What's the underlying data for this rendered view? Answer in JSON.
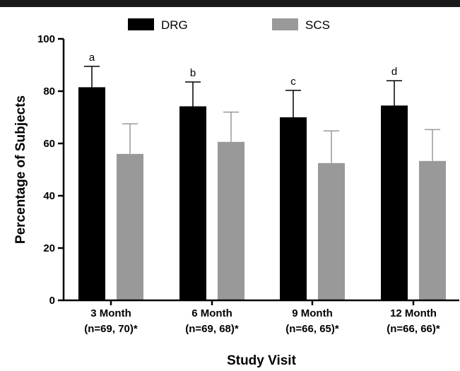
{
  "chart_data": {
    "type": "bar",
    "categories": [
      "3 Month",
      "6 Month",
      "9 Month",
      "12 Month"
    ],
    "category_sublabels": [
      "(n=69, 70)*",
      "(n=69, 68)*",
      "(n=66, 65)*",
      "(n=66, 66)*"
    ],
    "series": [
      {
        "name": "DRG",
        "color": "#000000",
        "values": [
          81.5,
          74.2,
          70.0,
          74.5
        ],
        "error_upper": [
          89.5,
          83.5,
          80.3,
          84.0
        ],
        "annotations": [
          "a",
          "b",
          "c",
          "d"
        ]
      },
      {
        "name": "SCS",
        "color": "#999999",
        "values": [
          56.0,
          60.6,
          52.5,
          53.3
        ],
        "error_upper": [
          67.5,
          72.0,
          64.8,
          65.3
        ]
      }
    ],
    "xlabel": "Study Visit",
    "ylabel": "Percentage of Subjects",
    "ylim": [
      0,
      100
    ],
    "yticks": [
      "0",
      "20",
      "40",
      "60",
      "80",
      "100"
    ],
    "legend_position": "top-center",
    "grid": false
  }
}
